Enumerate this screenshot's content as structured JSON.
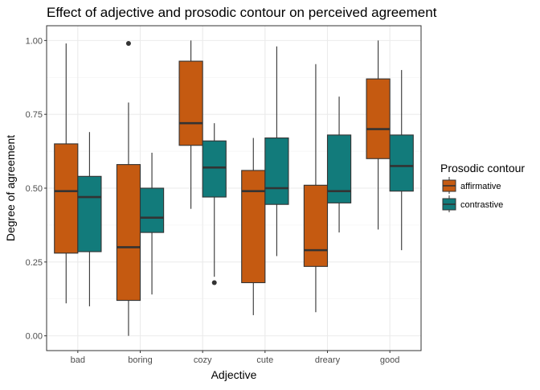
{
  "chart_data": {
    "type": "boxplot",
    "title": "Effect of adjective and prosodic contour on perceived agreement",
    "xlabel": "Adjective",
    "ylabel": "Degree of agreement",
    "ylim": [
      -0.05,
      1.05
    ],
    "yticks": [
      "0.00",
      "0.25",
      "0.50",
      "0.75",
      "1.00"
    ],
    "categories": [
      "bad",
      "boring",
      "cozy",
      "cute",
      "dreary",
      "good"
    ],
    "grid": true,
    "legend": {
      "title": "Prosodic contour",
      "position": "right"
    },
    "series": [
      {
        "name": "affirmative",
        "color": "#c55a11",
        "boxes": [
          {
            "min": 0.11,
            "q1": 0.28,
            "median": 0.49,
            "q3": 0.65,
            "max": 0.99,
            "outliers": []
          },
          {
            "min": 0.0,
            "q1": 0.12,
            "median": 0.3,
            "q3": 0.58,
            "max": 0.79,
            "outliers": [
              0.99
            ]
          },
          {
            "min": 0.43,
            "q1": 0.645,
            "median": 0.72,
            "q3": 0.93,
            "max": 1.0,
            "outliers": []
          },
          {
            "min": 0.07,
            "q1": 0.18,
            "median": 0.49,
            "q3": 0.56,
            "max": 0.67,
            "outliers": []
          },
          {
            "min": 0.08,
            "q1": 0.235,
            "median": 0.29,
            "q3": 0.51,
            "max": 0.92,
            "outliers": []
          },
          {
            "min": 0.36,
            "q1": 0.6,
            "median": 0.7,
            "q3": 0.87,
            "max": 1.0,
            "outliers": []
          }
        ]
      },
      {
        "name": "contrastive",
        "color": "#127b7b",
        "boxes": [
          {
            "min": 0.1,
            "q1": 0.285,
            "median": 0.47,
            "q3": 0.54,
            "max": 0.69,
            "outliers": []
          },
          {
            "min": 0.14,
            "q1": 0.35,
            "median": 0.4,
            "q3": 0.5,
            "max": 0.62,
            "outliers": []
          },
          {
            "min": 0.2,
            "q1": 0.47,
            "median": 0.57,
            "q3": 0.66,
            "max": 0.72,
            "outliers": [
              0.18
            ]
          },
          {
            "min": 0.27,
            "q1": 0.445,
            "median": 0.5,
            "q3": 0.67,
            "max": 0.98,
            "outliers": []
          },
          {
            "min": 0.35,
            "q1": 0.45,
            "median": 0.49,
            "q3": 0.68,
            "max": 0.81,
            "outliers": []
          },
          {
            "min": 0.29,
            "q1": 0.49,
            "median": 0.575,
            "q3": 0.68,
            "max": 0.9,
            "outliers": []
          }
        ]
      }
    ]
  }
}
